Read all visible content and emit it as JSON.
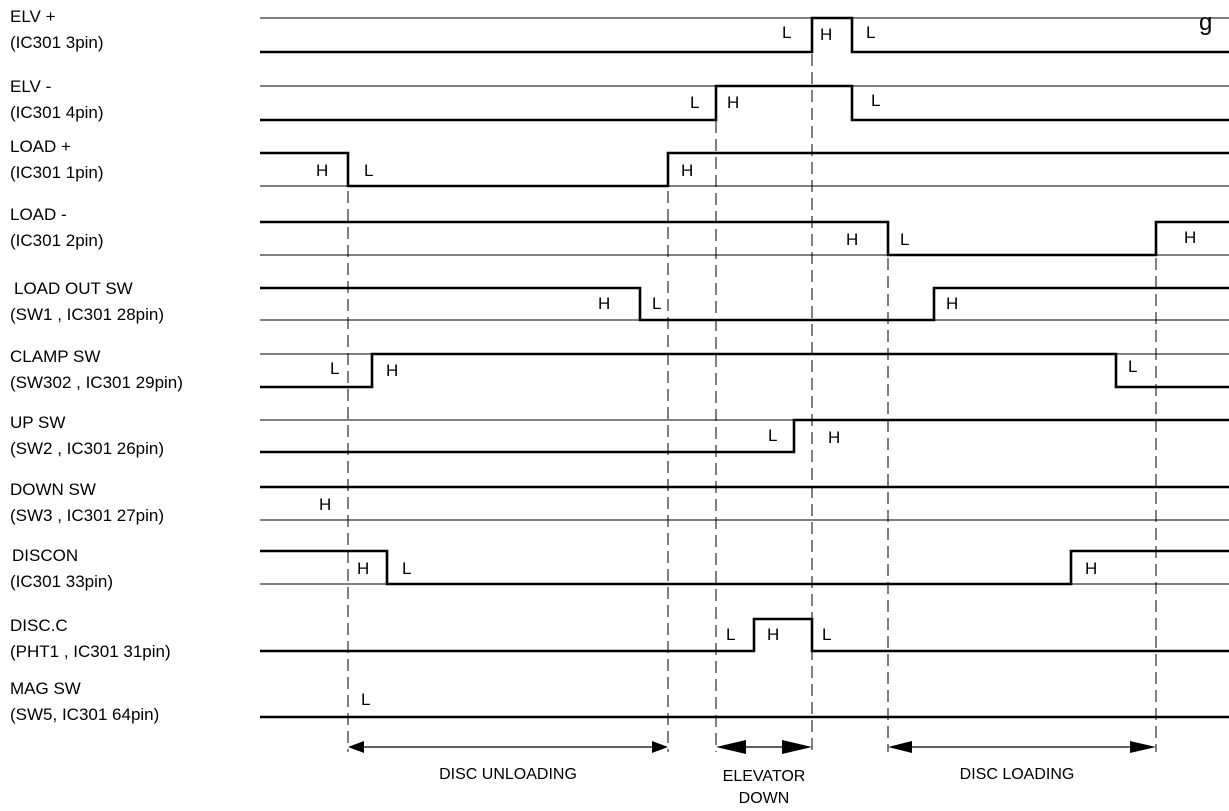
{
  "signals": [
    {
      "id": "elv-plus",
      "name": "ELV +",
      "sub": "(IC301 3pin)",
      "states": [
        "L",
        "H",
        "L"
      ]
    },
    {
      "id": "elv-minus",
      "name": "ELV -",
      "sub": "(IC301 4pin)",
      "states": [
        "L",
        "H",
        "L"
      ]
    },
    {
      "id": "load-plus",
      "name": "LOAD +",
      "sub": "(IC301 1pin)",
      "states": [
        "H",
        "L",
        "H"
      ]
    },
    {
      "id": "load-minus",
      "name": "LOAD -",
      "sub": "(IC301 2pin)",
      "states": [
        "H",
        "L",
        "H"
      ]
    },
    {
      "id": "load-out-sw",
      "name": "LOAD OUT SW",
      "sub": "(SW1 , IC301 28pin)",
      "states": [
        "H",
        "L",
        "H"
      ]
    },
    {
      "id": "clamp-sw",
      "name": "CLAMP SW",
      "sub": "(SW302 , IC301 29pin)",
      "states": [
        "L",
        "H",
        "L"
      ]
    },
    {
      "id": "up-sw",
      "name": "UP SW",
      "sub": "(SW2 , IC301 26pin)",
      "states": [
        "L",
        "H"
      ]
    },
    {
      "id": "down-sw",
      "name": "DOWN SW",
      "sub": "(SW3 , IC301 27pin)",
      "states": [
        "H"
      ]
    },
    {
      "id": "discon",
      "name": "DISCON",
      "sub": " (IC301 33pin)",
      "states": [
        "H",
        "L",
        "H"
      ]
    },
    {
      "id": "disc-c",
      "name": "DISC.C",
      "sub": "(PHT1 , IC301 31pin)",
      "states": [
        "L",
        "H",
        "L"
      ]
    },
    {
      "id": "mag-sw",
      "name": "MAG SW",
      "sub": "(SW5, IC301 64pin)",
      "states": [
        "L"
      ]
    }
  ],
  "phases": [
    {
      "id": "disc-unloading",
      "lines": [
        "DISC UNLOADING"
      ]
    },
    {
      "id": "elevator-down",
      "lines": [
        "ELEVATOR",
        "DOWN"
      ]
    },
    {
      "id": "disc-loading",
      "lines": [
        "DISC LOADING"
      ]
    }
  ],
  "corner_fragment": "g"
}
